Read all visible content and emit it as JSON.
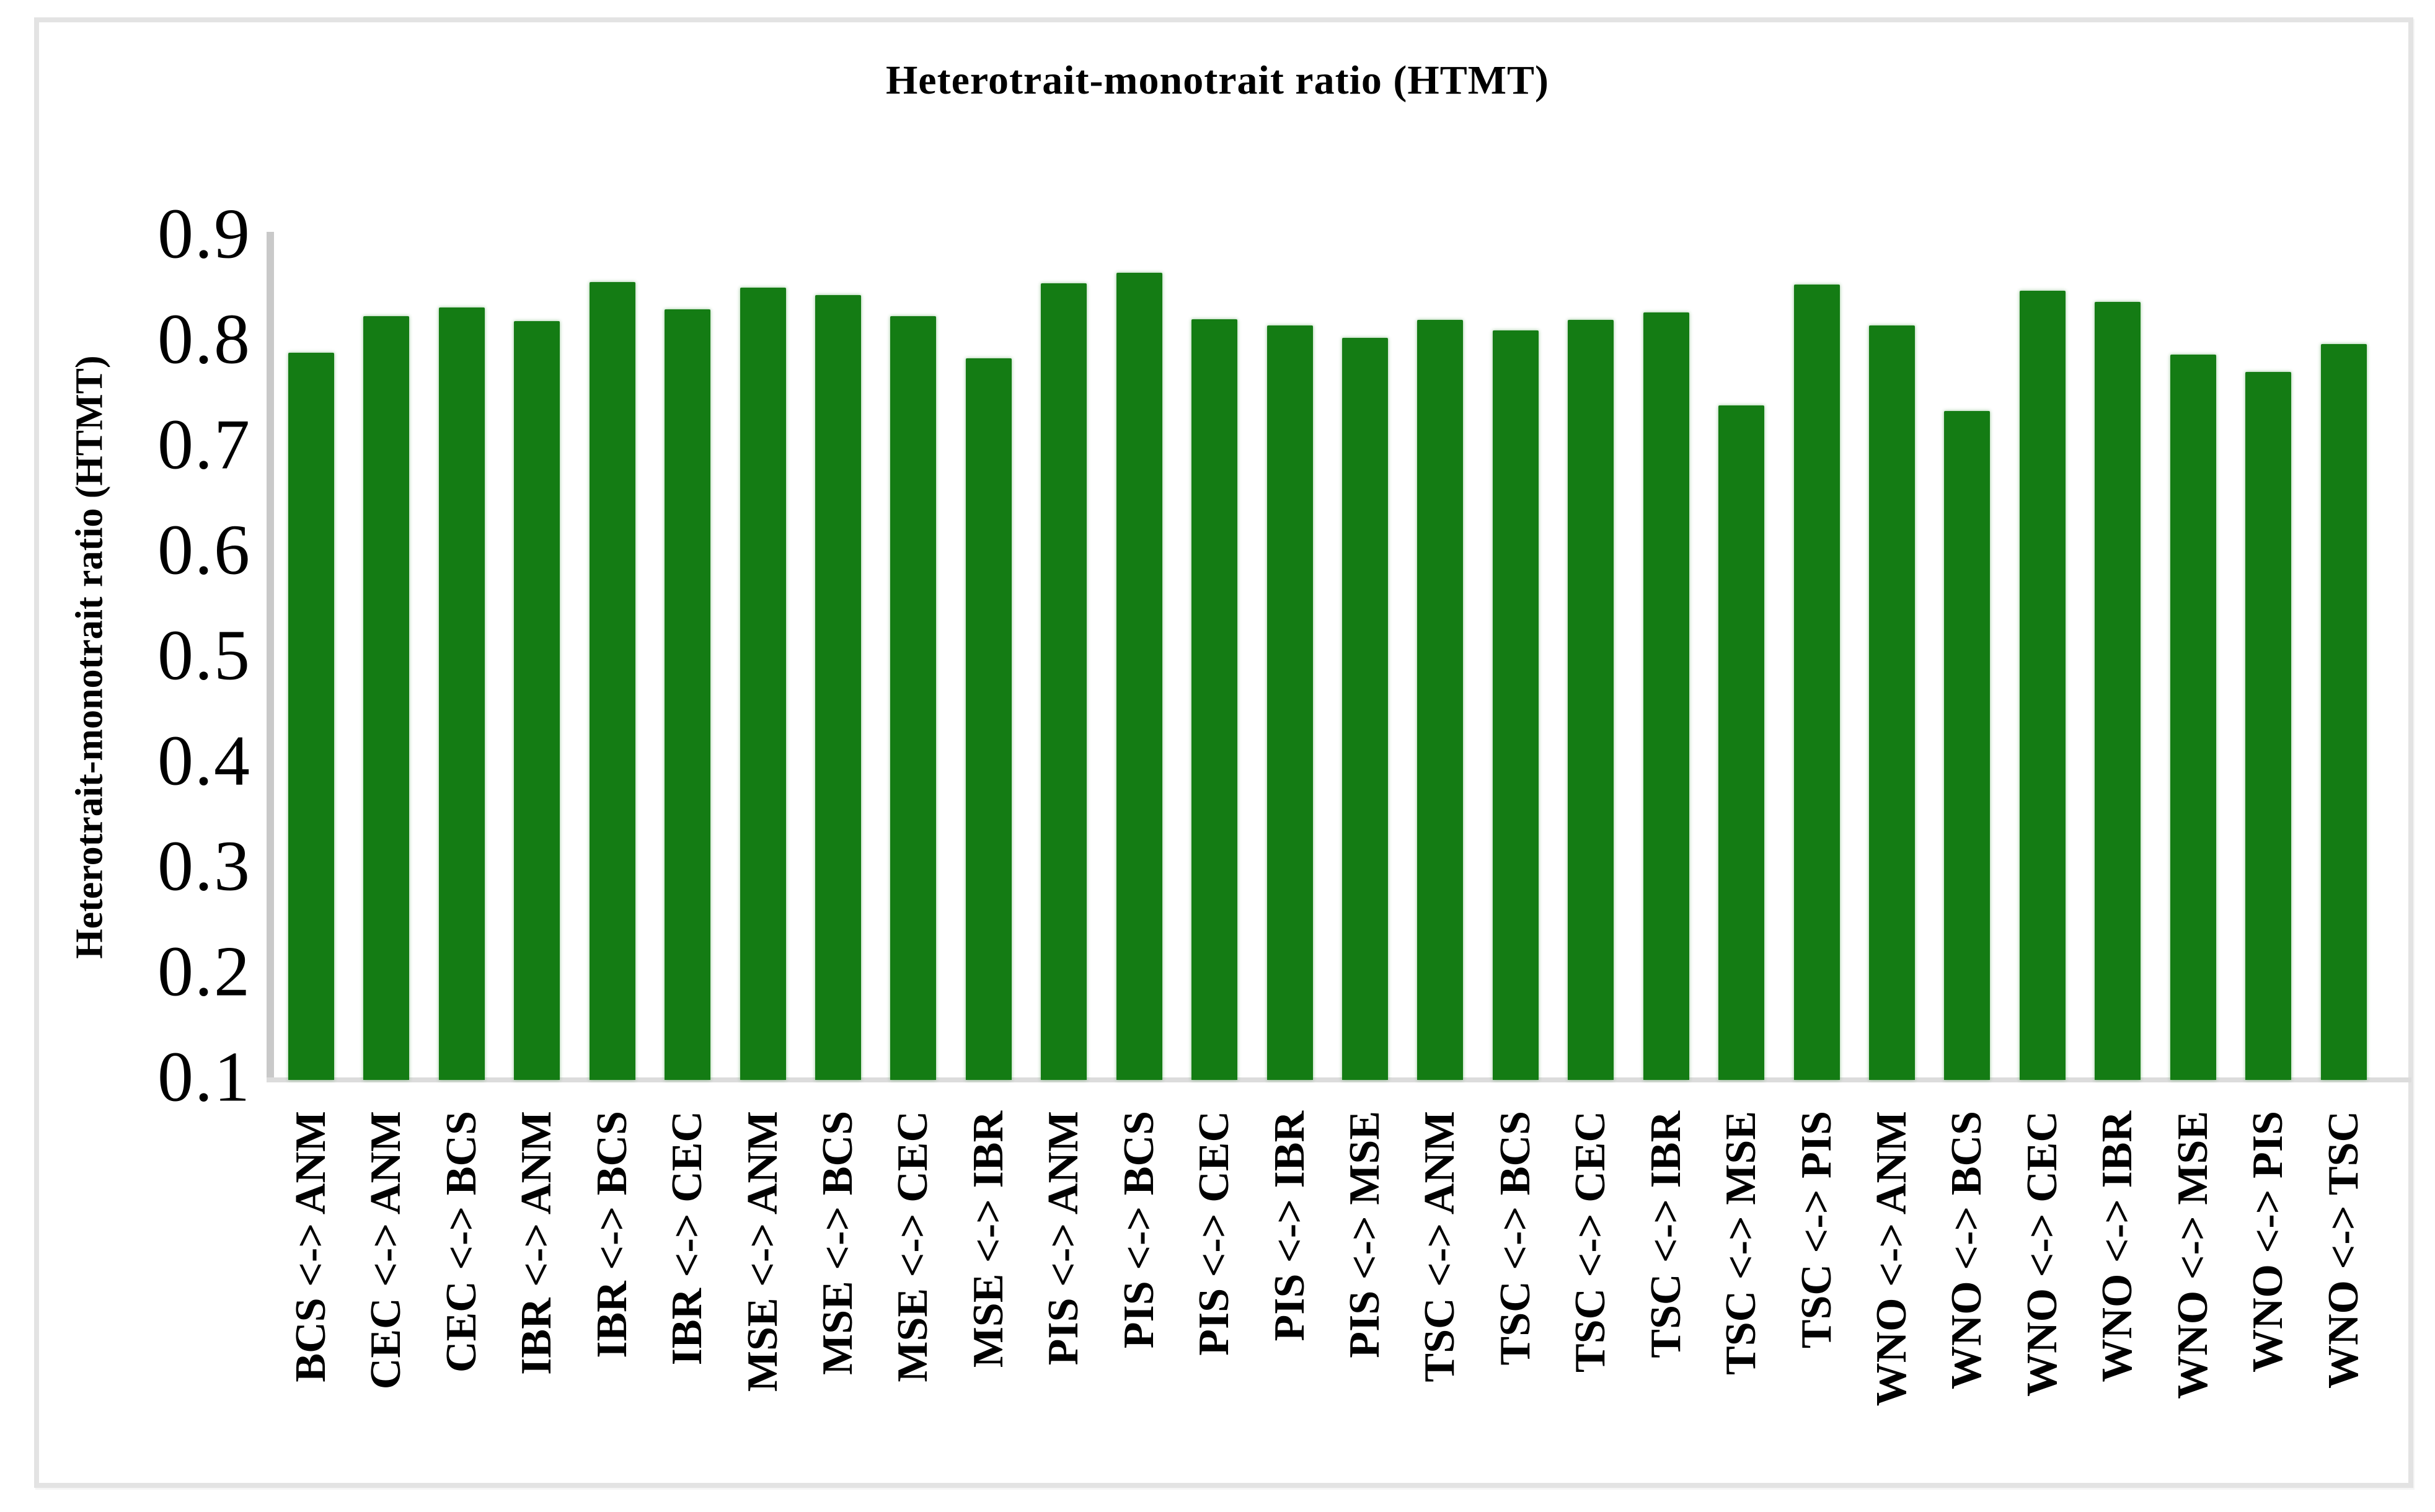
{
  "chart_data": {
    "type": "bar",
    "title": "Heterotrait-monotrait ratio (HTMT)",
    "ylabel": "Heterotrait-monotrait ratio (HTMT)",
    "xlabel": "",
    "ylim": [
      0.1,
      0.9
    ],
    "yticks": [
      "0.9",
      "0.8",
      "0.7",
      "0.6",
      "0.5",
      "0.4",
      "0.3",
      "0.2",
      "0.1"
    ],
    "ytick_values": [
      0.9,
      0.8,
      0.7,
      0.6,
      0.5,
      0.4,
      0.3,
      0.2,
      0.1
    ],
    "grid": false,
    "legend": null,
    "bar_color": "#147c14",
    "axis_color": "#c9c9c9",
    "categories": [
      "BCS <-> ANM",
      "CEC <-> ANM",
      "CEC <-> BCS",
      "IBR <-> ANM",
      "IBR <-> BCS",
      "IBR <-> CEC",
      "MSE <-> ANM",
      "MSE <-> BCS",
      "MSE <-> CEC",
      "MSE <-> IBR",
      "PIS <-> ANM",
      "PIS <-> BCS",
      "PIS <-> CEC",
      "PIS <-> IBR",
      "PIS <-> MSE",
      "TSC <-> ANM",
      "TSC <-> BCS",
      "TSC <-> CEC",
      "TSC <-> IBR",
      "TSC <-> MSE",
      "TSC <-> PIS",
      "WNO <-> ANM",
      "WNO <-> BCS",
      "WNO <-> CEC",
      "WNO <-> IBR",
      "WNO <-> MSE",
      "WNO <-> PIS",
      "WNO <-> TSC"
    ],
    "values": [
      0.79,
      0.825,
      0.833,
      0.82,
      0.857,
      0.831,
      0.852,
      0.845,
      0.825,
      0.785,
      0.856,
      0.866,
      0.822,
      0.816,
      0.804,
      0.821,
      0.811,
      0.821,
      0.828,
      0.74,
      0.855,
      0.816,
      0.735,
      0.849,
      0.838,
      0.788,
      0.772,
      0.798
    ]
  }
}
